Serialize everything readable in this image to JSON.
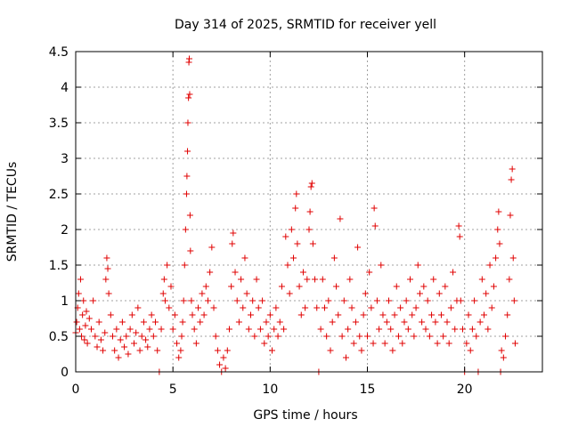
{
  "chart_data": {
    "type": "scatter",
    "title": "Day 314 of 2025, SRMTID for receiver yell",
    "xlabel": "GPS time / hours",
    "ylabel": "SRMTID / TECUs",
    "xlim": [
      0,
      24
    ],
    "ylim": [
      0,
      4.5
    ],
    "x_ticks": [
      0,
      5,
      10,
      15,
      20
    ],
    "x_tick_labels": [
      "0",
      "5",
      "10",
      "15",
      "20"
    ],
    "y_ticks": [
      0,
      0.5,
      1,
      1.5,
      2,
      2.5,
      3,
      3.5,
      4,
      4.5
    ],
    "y_tick_labels": [
      "0",
      "0.5",
      "1",
      "1.5",
      "2",
      "2.5",
      "3",
      "3.5",
      "4",
      "4.5"
    ],
    "grid": true,
    "marker": "+",
    "color": "#e00000",
    "series": [
      {
        "name": "SRMTID",
        "points": [
          [
            0.0,
            0.55
          ],
          [
            0.05,
            0.7
          ],
          [
            0.1,
            0.9
          ],
          [
            0.15,
            1.1
          ],
          [
            0.2,
            0.6
          ],
          [
            0.25,
            1.3
          ],
          [
            0.3,
            0.5
          ],
          [
            0.35,
            0.8
          ],
          [
            0.4,
            1.0
          ],
          [
            0.45,
            0.45
          ],
          [
            0.5,
            0.65
          ],
          [
            0.55,
            0.85
          ],
          [
            0.6,
            0.4
          ],
          [
            0.7,
            0.75
          ],
          [
            0.8,
            0.6
          ],
          [
            0.9,
            1.0
          ],
          [
            1.0,
            0.5
          ],
          [
            1.1,
            0.35
          ],
          [
            1.2,
            0.7
          ],
          [
            1.3,
            0.45
          ],
          [
            1.4,
            0.3
          ],
          [
            1.5,
            0.55
          ],
          [
            1.55,
            1.3
          ],
          [
            1.6,
            1.6
          ],
          [
            1.65,
            1.45
          ],
          [
            1.7,
            1.1
          ],
          [
            1.8,
            0.8
          ],
          [
            1.9,
            0.5
          ],
          [
            2.0,
            0.3
          ],
          [
            2.1,
            0.6
          ],
          [
            2.2,
            0.2
          ],
          [
            2.3,
            0.45
          ],
          [
            2.4,
            0.7
          ],
          [
            2.5,
            0.35
          ],
          [
            2.6,
            0.5
          ],
          [
            2.7,
            0.25
          ],
          [
            2.8,
            0.6
          ],
          [
            2.9,
            0.8
          ],
          [
            3.0,
            0.4
          ],
          [
            3.1,
            0.55
          ],
          [
            3.2,
            0.9
          ],
          [
            3.3,
            0.3
          ],
          [
            3.4,
            0.5
          ],
          [
            3.5,
            0.7
          ],
          [
            3.6,
            0.45
          ],
          [
            3.7,
            0.35
          ],
          [
            3.8,
            0.6
          ],
          [
            3.9,
            0.8
          ],
          [
            4.0,
            0.5
          ],
          [
            4.1,
            0.7
          ],
          [
            4.2,
            0.3
          ],
          [
            4.3,
            0.0
          ],
          [
            4.4,
            0.6
          ],
          [
            4.5,
            1.1
          ],
          [
            4.55,
            1.3
          ],
          [
            4.6,
            1.0
          ],
          [
            4.7,
            1.5
          ],
          [
            4.8,
            0.9
          ],
          [
            4.9,
            1.2
          ],
          [
            5.0,
            0.6
          ],
          [
            5.1,
            0.8
          ],
          [
            5.2,
            0.4
          ],
          [
            5.3,
            0.2
          ],
          [
            5.4,
            0.3
          ],
          [
            5.45,
            0.5
          ],
          [
            5.5,
            0.7
          ],
          [
            5.55,
            1.0
          ],
          [
            5.6,
            1.5
          ],
          [
            5.65,
            2.0
          ],
          [
            5.7,
            2.5
          ],
          [
            5.72,
            2.75
          ],
          [
            5.75,
            3.1
          ],
          [
            5.77,
            3.5
          ],
          [
            5.8,
            3.85
          ],
          [
            5.82,
            4.35
          ],
          [
            5.84,
            4.4
          ],
          [
            5.86,
            3.9
          ],
          [
            5.88,
            2.2
          ],
          [
            5.9,
            1.7
          ],
          [
            5.95,
            1.0
          ],
          [
            6.0,
            0.8
          ],
          [
            6.1,
            0.6
          ],
          [
            6.2,
            0.4
          ],
          [
            6.3,
            0.9
          ],
          [
            6.4,
            0.7
          ],
          [
            6.5,
            1.1
          ],
          [
            6.6,
            0.8
          ],
          [
            6.7,
            1.2
          ],
          [
            6.8,
            1.0
          ],
          [
            6.9,
            1.4
          ],
          [
            7.0,
            1.75
          ],
          [
            7.1,
            0.9
          ],
          [
            7.2,
            0.5
          ],
          [
            7.3,
            0.3
          ],
          [
            7.4,
            0.1
          ],
          [
            7.5,
            0.0
          ],
          [
            7.6,
            0.2
          ],
          [
            7.7,
            0.05
          ],
          [
            7.8,
            0.3
          ],
          [
            7.9,
            0.6
          ],
          [
            8.0,
            1.2
          ],
          [
            8.05,
            1.8
          ],
          [
            8.1,
            1.95
          ],
          [
            8.2,
            1.4
          ],
          [
            8.3,
            1.0
          ],
          [
            8.4,
            0.7
          ],
          [
            8.5,
            1.3
          ],
          [
            8.6,
            0.9
          ],
          [
            8.7,
            1.6
          ],
          [
            8.8,
            1.1
          ],
          [
            8.9,
            0.6
          ],
          [
            9.0,
            0.8
          ],
          [
            9.1,
            1.0
          ],
          [
            9.2,
            0.5
          ],
          [
            9.3,
            1.3
          ],
          [
            9.4,
            0.9
          ],
          [
            9.5,
            0.6
          ],
          [
            9.6,
            1.0
          ],
          [
            9.7,
            0.4
          ],
          [
            9.8,
            0.7
          ],
          [
            9.9,
            0.5
          ],
          [
            10.0,
            0.8
          ],
          [
            10.1,
            0.3
          ],
          [
            10.2,
            0.6
          ],
          [
            10.3,
            0.9
          ],
          [
            10.4,
            0.5
          ],
          [
            10.5,
            0.7
          ],
          [
            10.6,
            1.2
          ],
          [
            10.7,
            0.6
          ],
          [
            10.8,
            1.9
          ],
          [
            10.9,
            1.5
          ],
          [
            11.0,
            1.1
          ],
          [
            11.1,
            2.0
          ],
          [
            11.2,
            1.6
          ],
          [
            11.3,
            2.3
          ],
          [
            11.35,
            2.5
          ],
          [
            11.4,
            1.8
          ],
          [
            11.5,
            1.2
          ],
          [
            11.6,
            0.8
          ],
          [
            11.7,
            1.4
          ],
          [
            11.8,
            0.9
          ],
          [
            11.9,
            1.3
          ],
          [
            12.0,
            2.0
          ],
          [
            12.05,
            2.25
          ],
          [
            12.1,
            2.6
          ],
          [
            12.15,
            2.65
          ],
          [
            12.2,
            1.8
          ],
          [
            12.3,
            1.3
          ],
          [
            12.4,
            0.9
          ],
          [
            12.5,
            0.0
          ],
          [
            12.6,
            0.6
          ],
          [
            12.7,
            1.3
          ],
          [
            12.8,
            0.9
          ],
          [
            12.9,
            0.5
          ],
          [
            13.0,
            1.0
          ],
          [
            13.1,
            0.3
          ],
          [
            13.2,
            0.7
          ],
          [
            13.3,
            1.6
          ],
          [
            13.4,
            1.2
          ],
          [
            13.5,
            0.8
          ],
          [
            13.6,
            2.15
          ],
          [
            13.7,
            0.5
          ],
          [
            13.8,
            1.0
          ],
          [
            13.9,
            0.2
          ],
          [
            14.0,
            0.6
          ],
          [
            14.1,
            1.3
          ],
          [
            14.2,
            0.9
          ],
          [
            14.3,
            0.4
          ],
          [
            14.4,
            0.7
          ],
          [
            14.5,
            1.75
          ],
          [
            14.6,
            0.5
          ],
          [
            14.7,
            0.3
          ],
          [
            14.8,
            0.8
          ],
          [
            14.9,
            1.1
          ],
          [
            15.0,
            0.5
          ],
          [
            15.1,
            1.4
          ],
          [
            15.2,
            0.9
          ],
          [
            15.3,
            0.4
          ],
          [
            15.35,
            2.3
          ],
          [
            15.4,
            2.05
          ],
          [
            15.5,
            1.0
          ],
          [
            15.6,
            0.6
          ],
          [
            15.7,
            1.5
          ],
          [
            15.8,
            0.8
          ],
          [
            15.9,
            0.4
          ],
          [
            16.0,
            0.7
          ],
          [
            16.1,
            1.0
          ],
          [
            16.2,
            0.6
          ],
          [
            16.3,
            0.3
          ],
          [
            16.4,
            0.8
          ],
          [
            16.5,
            1.2
          ],
          [
            16.6,
            0.5
          ],
          [
            16.7,
            0.9
          ],
          [
            16.8,
            0.4
          ],
          [
            16.9,
            0.7
          ],
          [
            17.0,
            1.0
          ],
          [
            17.1,
            0.6
          ],
          [
            17.2,
            1.3
          ],
          [
            17.3,
            0.8
          ],
          [
            17.4,
            0.5
          ],
          [
            17.5,
            0.9
          ],
          [
            17.6,
            1.5
          ],
          [
            17.7,
            1.1
          ],
          [
            17.8,
            0.7
          ],
          [
            17.9,
            1.2
          ],
          [
            18.0,
            0.6
          ],
          [
            18.1,
            1.0
          ],
          [
            18.2,
            0.5
          ],
          [
            18.3,
            0.8
          ],
          [
            18.4,
            1.3
          ],
          [
            18.5,
            0.7
          ],
          [
            18.6,
            0.4
          ],
          [
            18.7,
            1.1
          ],
          [
            18.8,
            0.8
          ],
          [
            18.9,
            0.5
          ],
          [
            19.0,
            1.2
          ],
          [
            19.1,
            0.7
          ],
          [
            19.2,
            0.4
          ],
          [
            19.3,
            0.9
          ],
          [
            19.4,
            1.4
          ],
          [
            19.5,
            0.6
          ],
          [
            19.6,
            1.0
          ],
          [
            19.7,
            2.05
          ],
          [
            19.75,
            1.9
          ],
          [
            19.8,
            1.0
          ],
          [
            19.9,
            0.6
          ],
          [
            20.0,
            0.0
          ],
          [
            20.1,
            0.4
          ],
          [
            20.2,
            0.8
          ],
          [
            20.3,
            0.3
          ],
          [
            20.4,
            0.6
          ],
          [
            20.5,
            1.0
          ],
          [
            20.6,
            0.5
          ],
          [
            20.7,
            0.0
          ],
          [
            20.8,
            0.7
          ],
          [
            20.9,
            1.3
          ],
          [
            21.0,
            0.8
          ],
          [
            21.1,
            1.1
          ],
          [
            21.2,
            0.6
          ],
          [
            21.3,
            1.5
          ],
          [
            21.4,
            0.9
          ],
          [
            21.5,
            1.2
          ],
          [
            21.6,
            1.6
          ],
          [
            21.7,
            2.0
          ],
          [
            21.75,
            2.25
          ],
          [
            21.8,
            1.8
          ],
          [
            21.85,
            0.0
          ],
          [
            21.9,
            0.3
          ],
          [
            22.0,
            0.2
          ],
          [
            22.1,
            0.5
          ],
          [
            22.2,
            0.8
          ],
          [
            22.3,
            1.3
          ],
          [
            22.35,
            2.2
          ],
          [
            22.4,
            2.7
          ],
          [
            22.45,
            2.85
          ],
          [
            22.5,
            1.6
          ],
          [
            22.55,
            1.0
          ],
          [
            22.6,
            0.4
          ]
        ]
      }
    ]
  }
}
